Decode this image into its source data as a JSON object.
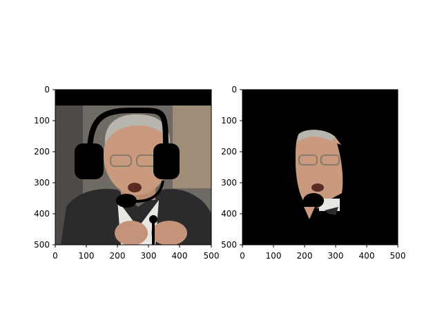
{
  "panels": [
    {
      "id": "left",
      "description_visible": "photo of a man in a suit with a black headset overlay drawn on top",
      "x_ticks": [
        "0",
        "100",
        "200",
        "300",
        "400",
        "500"
      ],
      "y_ticks": [
        "0",
        "100",
        "200",
        "300",
        "400",
        "500"
      ]
    },
    {
      "id": "right",
      "description_visible": "masked result: only the face and microphone region visible on black background",
      "x_ticks": [
        "0",
        "100",
        "200",
        "300",
        "400",
        "500"
      ],
      "y_ticks": [
        "0",
        "100",
        "200",
        "300",
        "400",
        "500"
      ]
    }
  ],
  "colors": {
    "background": "#ffffff",
    "mask": "#000000",
    "suit": "#2b2b2e",
    "skin": "#c99a7e",
    "backdrop": "#6f6a63"
  }
}
